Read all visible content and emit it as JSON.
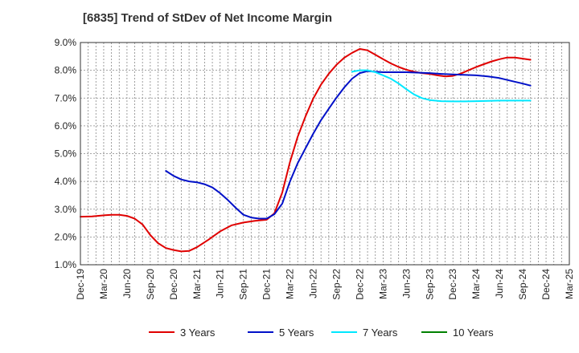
{
  "chart_data": {
    "type": "line",
    "title": "[6835]  Trend of StDev of Net Income Margin",
    "xlabel": "",
    "ylabel": "",
    "x_ticks": [
      "Dec-19",
      "Mar-20",
      "Jun-20",
      "Sep-20",
      "Dec-20",
      "Mar-21",
      "Jun-21",
      "Sep-21",
      "Dec-21",
      "Mar-22",
      "Jun-22",
      "Sep-22",
      "Dec-22",
      "Mar-23",
      "Jun-23",
      "Sep-23",
      "Dec-23",
      "Mar-24",
      "Jun-24",
      "Sep-24",
      "Dec-24",
      "Mar-25"
    ],
    "y_ticks": [
      "1.0%",
      "2.0%",
      "3.0%",
      "4.0%",
      "5.0%",
      "6.0%",
      "7.0%",
      "8.0%",
      "9.0%"
    ],
    "ylim": [
      1.0,
      9.0
    ],
    "xlim": [
      0,
      21
    ],
    "grid": true,
    "legend_position": "bottom",
    "series": [
      {
        "name": "3 Years",
        "color": "#e00000",
        "points": [
          [
            0,
            2.73
          ],
          [
            0.5,
            2.74
          ],
          [
            1,
            2.78
          ],
          [
            1.33,
            2.8
          ],
          [
            1.67,
            2.8
          ],
          [
            2,
            2.76
          ],
          [
            2.33,
            2.66
          ],
          [
            2.67,
            2.45
          ],
          [
            3,
            2.07
          ],
          [
            3.33,
            1.78
          ],
          [
            3.67,
            1.6
          ],
          [
            4,
            1.53
          ],
          [
            4.33,
            1.48
          ],
          [
            4.67,
            1.5
          ],
          [
            5,
            1.63
          ],
          [
            5.5,
            1.9
          ],
          [
            6,
            2.2
          ],
          [
            6.5,
            2.42
          ],
          [
            7,
            2.52
          ],
          [
            7.5,
            2.58
          ],
          [
            8,
            2.62
          ],
          [
            8.33,
            2.85
          ],
          [
            8.67,
            3.6
          ],
          [
            9,
            4.7
          ],
          [
            9.33,
            5.6
          ],
          [
            9.67,
            6.35
          ],
          [
            10,
            6.98
          ],
          [
            10.33,
            7.48
          ],
          [
            10.67,
            7.88
          ],
          [
            11,
            8.2
          ],
          [
            11.33,
            8.45
          ],
          [
            11.67,
            8.63
          ],
          [
            12,
            8.77
          ],
          [
            12.33,
            8.72
          ],
          [
            12.67,
            8.56
          ],
          [
            13,
            8.4
          ],
          [
            13.33,
            8.25
          ],
          [
            13.67,
            8.12
          ],
          [
            14,
            8.02
          ],
          [
            14.33,
            7.95
          ],
          [
            14.67,
            7.9
          ],
          [
            15,
            7.87
          ],
          [
            15.33,
            7.82
          ],
          [
            15.67,
            7.78
          ],
          [
            16,
            7.8
          ],
          [
            16.33,
            7.88
          ],
          [
            16.67,
            8.0
          ],
          [
            17,
            8.12
          ],
          [
            17.33,
            8.22
          ],
          [
            17.67,
            8.32
          ],
          [
            18,
            8.4
          ],
          [
            18.33,
            8.46
          ],
          [
            18.67,
            8.46
          ],
          [
            19,
            8.42
          ],
          [
            19.33,
            8.38
          ]
        ]
      },
      {
        "name": "5 Years",
        "color": "#0010c8",
        "points": [
          [
            3.67,
            4.38
          ],
          [
            4,
            4.2
          ],
          [
            4.33,
            4.07
          ],
          [
            4.67,
            4.0
          ],
          [
            5,
            3.97
          ],
          [
            5.33,
            3.9
          ],
          [
            5.67,
            3.78
          ],
          [
            6,
            3.58
          ],
          [
            6.33,
            3.33
          ],
          [
            6.67,
            3.05
          ],
          [
            7,
            2.8
          ],
          [
            7.33,
            2.7
          ],
          [
            7.67,
            2.66
          ],
          [
            8,
            2.66
          ],
          [
            8.33,
            2.82
          ],
          [
            8.67,
            3.2
          ],
          [
            9,
            4.0
          ],
          [
            9.33,
            4.65
          ],
          [
            9.67,
            5.2
          ],
          [
            10,
            5.72
          ],
          [
            10.33,
            6.2
          ],
          [
            10.67,
            6.62
          ],
          [
            11,
            7.02
          ],
          [
            11.33,
            7.38
          ],
          [
            11.67,
            7.7
          ],
          [
            12,
            7.9
          ],
          [
            12.33,
            7.97
          ],
          [
            12.67,
            7.95
          ],
          [
            13,
            7.93
          ],
          [
            14,
            7.93
          ],
          [
            15,
            7.9
          ],
          [
            15.5,
            7.87
          ],
          [
            16,
            7.85
          ],
          [
            17,
            7.82
          ],
          [
            17.5,
            7.78
          ],
          [
            18,
            7.72
          ],
          [
            18.5,
            7.62
          ],
          [
            19,
            7.52
          ],
          [
            19.33,
            7.45
          ]
        ]
      },
      {
        "name": "7 Years",
        "color": "#00e8ff",
        "points": [
          [
            11.67,
            7.95
          ],
          [
            12,
            8.0
          ],
          [
            12.33,
            8.0
          ],
          [
            12.67,
            7.93
          ],
          [
            13,
            7.82
          ],
          [
            13.33,
            7.7
          ],
          [
            13.67,
            7.52
          ],
          [
            14,
            7.32
          ],
          [
            14.33,
            7.13
          ],
          [
            14.67,
            7.0
          ],
          [
            15,
            6.93
          ],
          [
            15.5,
            6.89
          ],
          [
            16,
            6.88
          ],
          [
            16.5,
            6.88
          ],
          [
            17,
            6.89
          ],
          [
            17.5,
            6.9
          ],
          [
            18,
            6.91
          ],
          [
            18.5,
            6.91
          ],
          [
            19,
            6.91
          ],
          [
            19.33,
            6.91
          ]
        ]
      },
      {
        "name": "10 Years",
        "color": "#008000",
        "points": []
      }
    ]
  }
}
